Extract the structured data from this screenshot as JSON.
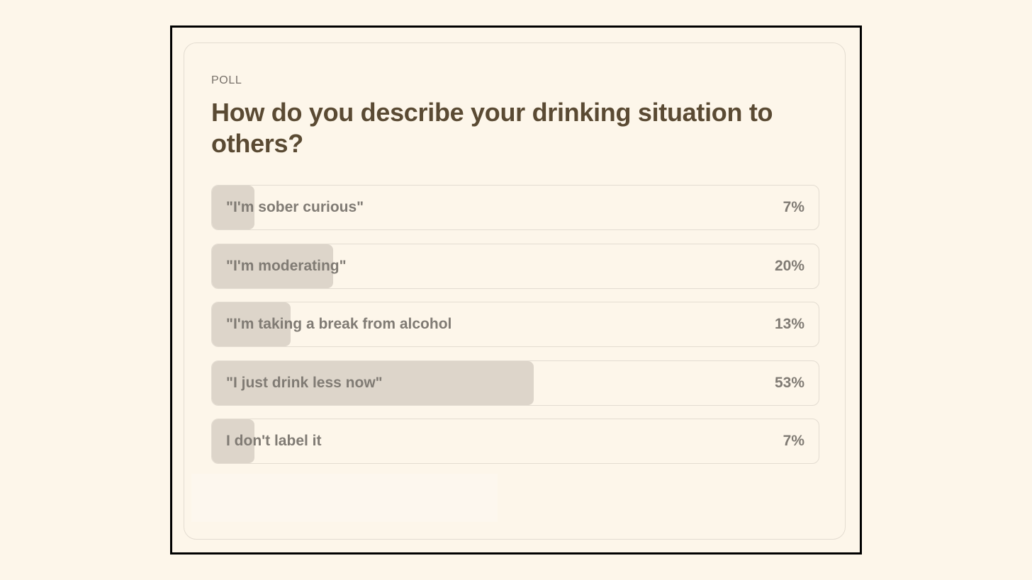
{
  "poll": {
    "kicker": "POLL",
    "question": "How do you describe your drinking situation to others?",
    "options": [
      {
        "label": "\"I'm sober curious\"",
        "percent_text": "7%",
        "percent": 7
      },
      {
        "label": "\"I'm moderating\"",
        "percent_text": "20%",
        "percent": 20
      },
      {
        "label": "\"I'm taking a break from alcohol",
        "percent_text": "13%",
        "percent": 13
      },
      {
        "label": "\"I just drink less now\"",
        "percent_text": "53%",
        "percent": 53
      },
      {
        "label": "I don't label it",
        "percent_text": "7%",
        "percent": 7
      }
    ]
  },
  "colors": {
    "page_background": "#fdf6ea",
    "frame_border": "#000000",
    "card_border": "#e3dcd1",
    "bar_fill": "#ddd5ca",
    "question_text": "#5a4a33",
    "option_text": "#807b74"
  }
}
